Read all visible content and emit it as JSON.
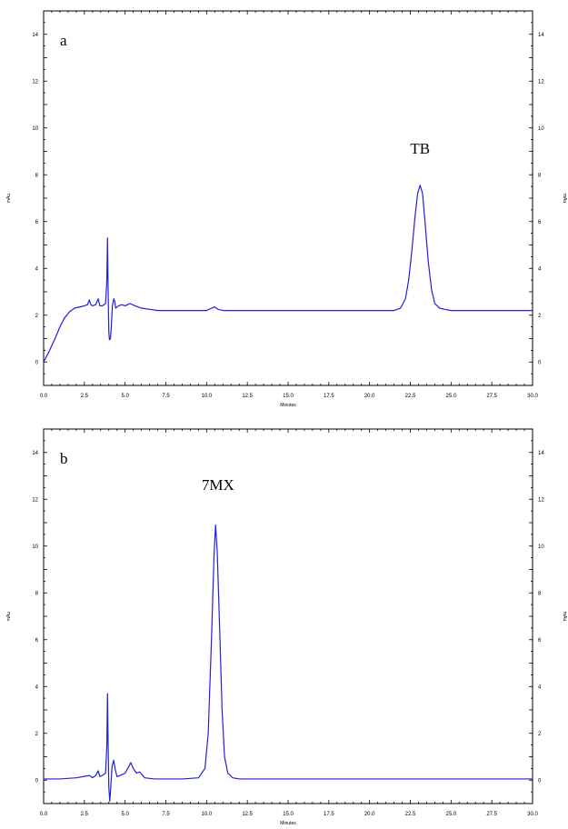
{
  "chart_data": [
    {
      "type": "line",
      "panel_label": "a",
      "xlabel": "Minutes",
      "ylabel_left": "mAu",
      "ylabel_right": "mAu",
      "xlim": [
        0,
        30
      ],
      "ylim": [
        -1,
        15
      ],
      "x_ticks": [
        "0.0",
        "2.5",
        "5.0",
        "7.5",
        "10.0",
        "12.5",
        "15.0",
        "17.5",
        "20.0",
        "22.5",
        "25.0",
        "27.5",
        "30.0"
      ],
      "y_ticks": [
        "0",
        "2",
        "4",
        "6",
        "8",
        "10",
        "12",
        "14"
      ],
      "line_color": "#1f1fe0",
      "series": [
        {
          "x": [
            0,
            0.3,
            0.7,
            1.0,
            1.3,
            1.6,
            1.9,
            2.2,
            2.5,
            2.7,
            2.8,
            2.9,
            3.0,
            3.2,
            3.35,
            3.45,
            3.6,
            3.8,
            3.88,
            3.92,
            3.96,
            4.0,
            4.04,
            4.1,
            4.16,
            4.22,
            4.3,
            4.36,
            4.42,
            4.5,
            4.6,
            4.8,
            5.0,
            5.3,
            5.6,
            5.8,
            6.0,
            6.5,
            7.0,
            8.0,
            9.0,
            10.0,
            10.3,
            10.5,
            10.7,
            11.0,
            12.0,
            14.0,
            16.0,
            18.0,
            20.0,
            21.5,
            21.9,
            22.2,
            22.4,
            22.6,
            22.8,
            22.95,
            23.1,
            23.25,
            23.4,
            23.6,
            23.8,
            24.0,
            24.3,
            24.6,
            25.0,
            26.0,
            28.0,
            30.0
          ],
          "y": [
            0.0,
            0.4,
            1.0,
            1.5,
            1.9,
            2.15,
            2.3,
            2.35,
            2.4,
            2.45,
            2.65,
            2.45,
            2.4,
            2.45,
            2.7,
            2.4,
            2.4,
            2.5,
            3.5,
            5.3,
            3.0,
            1.3,
            0.95,
            1.0,
            1.6,
            2.4,
            2.7,
            2.6,
            2.3,
            2.35,
            2.4,
            2.45,
            2.4,
            2.5,
            2.4,
            2.35,
            2.3,
            2.25,
            2.2,
            2.2,
            2.2,
            2.2,
            2.3,
            2.35,
            2.25,
            2.2,
            2.2,
            2.2,
            2.2,
            2.2,
            2.2,
            2.2,
            2.3,
            2.7,
            3.5,
            4.8,
            6.3,
            7.2,
            7.55,
            7.2,
            6.0,
            4.3,
            3.1,
            2.5,
            2.3,
            2.25,
            2.2,
            2.2,
            2.2,
            2.2
          ]
        }
      ],
      "annotations": [
        {
          "text": "TB",
          "x": 23.1,
          "y": 8.9
        }
      ]
    },
    {
      "type": "line",
      "panel_label": "b",
      "xlabel": "Minutes",
      "ylabel_left": "mAu",
      "ylabel_right": "mAu",
      "xlim": [
        0,
        30
      ],
      "ylim": [
        -1,
        15
      ],
      "x_ticks": [
        "0.0",
        "2.5",
        "5.0",
        "7.5",
        "10.0",
        "12.5",
        "15.0",
        "17.5",
        "20.0",
        "22.5",
        "25.0",
        "27.5",
        "30.0"
      ],
      "y_ticks": [
        "0",
        "2",
        "4",
        "6",
        "8",
        "10",
        "12",
        "14"
      ],
      "line_color": "#1f1fe0",
      "series": [
        {
          "x": [
            0,
            1.0,
            2.0,
            2.8,
            3.0,
            3.2,
            3.35,
            3.45,
            3.6,
            3.8,
            3.88,
            3.92,
            3.96,
            4.0,
            4.06,
            4.1,
            4.2,
            4.3,
            4.38,
            4.5,
            4.7,
            5.0,
            5.2,
            5.35,
            5.5,
            5.7,
            5.9,
            6.2,
            6.8,
            7.5,
            8.5,
            9.5,
            9.9,
            10.1,
            10.3,
            10.45,
            10.55,
            10.65,
            10.8,
            10.95,
            11.1,
            11.3,
            11.6,
            12.0,
            13.0,
            15.0,
            17.5,
            20.0,
            22.5,
            25.0,
            27.5,
            30.0
          ],
          "y": [
            0.05,
            0.05,
            0.1,
            0.2,
            0.1,
            0.2,
            0.4,
            0.15,
            0.2,
            0.3,
            1.5,
            3.7,
            1.5,
            -0.3,
            -0.9,
            -0.5,
            0.6,
            0.85,
            0.5,
            0.15,
            0.2,
            0.3,
            0.55,
            0.75,
            0.5,
            0.3,
            0.35,
            0.1,
            0.05,
            0.05,
            0.05,
            0.1,
            0.5,
            2.0,
            6.0,
            9.5,
            10.9,
            9.8,
            6.5,
            3.0,
            1.0,
            0.3,
            0.1,
            0.05,
            0.05,
            0.05,
            0.05,
            0.05,
            0.05,
            0.05,
            0.05,
            0.05
          ]
        }
      ],
      "annotations": [
        {
          "text": "7MX",
          "x": 10.7,
          "y": 12.4
        }
      ]
    }
  ]
}
